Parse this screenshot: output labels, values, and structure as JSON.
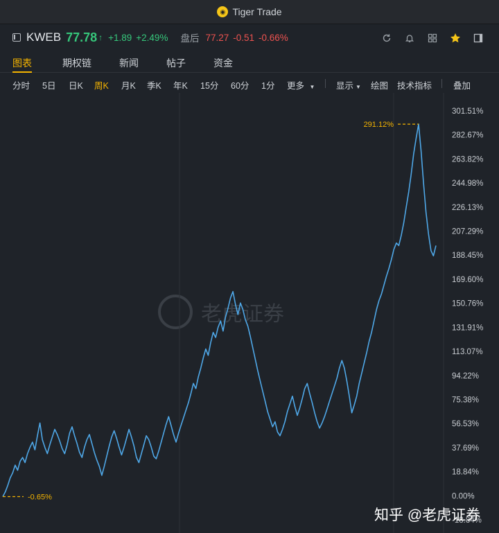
{
  "app": {
    "title": "Tiger Trade"
  },
  "quote": {
    "symbol": "KWEB",
    "price": "77.78",
    "change": "+1.89",
    "change_pct": "+2.49%",
    "after_hours_label": "盘后",
    "after_hours_price": "77.27",
    "after_hours_change": "-0.51",
    "after_hours_change_pct": "-0.66%"
  },
  "toolbar_icons": [
    "refresh-icon",
    "bell-icon",
    "grid-icon",
    "star-icon",
    "panel-icon"
  ],
  "tabs": [
    "图表",
    "期权链",
    "新闻",
    "帖子",
    "资金"
  ],
  "periods": [
    "分时",
    "5日",
    "日K",
    "周K",
    "月K",
    "季K",
    "年K",
    "15分",
    "60分",
    "1分",
    "更多",
    "显示",
    "绘图",
    "技术指标",
    "叠加"
  ],
  "active_period": "周K",
  "watermark": "老虎证券",
  "footer_watermark": "知乎 @老虎证券",
  "colors": {
    "up": "#36c77b",
    "down": "#ef5350",
    "accent": "#f5b400",
    "line": "#4fa8e8"
  },
  "chart_data": {
    "type": "line",
    "y_unit": "%",
    "y_ticks": [
      "301.51%",
      "282.67%",
      "263.82%",
      "244.98%",
      "226.13%",
      "207.29%",
      "188.45%",
      "169.60%",
      "150.76%",
      "131.91%",
      "113.07%",
      "94.22%",
      "75.38%",
      "56.53%",
      "37.69%",
      "18.84%",
      "0.00%",
      "-18.84%"
    ],
    "ylim": [
      -18.84,
      301.51
    ],
    "high_label": "291.12%",
    "low_label": "-0.65%",
    "high_value": 291.12,
    "low_value": -0.65,
    "grid": true,
    "series": [
      {
        "values": [
          -0.65,
          3,
          8,
          14,
          18,
          24,
          20,
          27,
          30,
          26,
          33,
          38,
          42,
          36,
          47,
          57,
          44,
          38,
          33,
          40,
          46,
          52,
          48,
          43,
          37,
          33,
          40,
          49,
          54,
          47,
          41,
          34,
          30,
          38,
          44,
          48,
          41,
          34,
          28,
          23,
          16,
          23,
          31,
          39,
          46,
          51,
          45,
          38,
          32,
          38,
          45,
          52,
          46,
          39,
          30,
          26,
          33,
          40,
          47,
          44,
          38,
          31,
          29,
          35,
          42,
          49,
          56,
          62,
          55,
          48,
          42,
          49,
          55,
          61,
          67,
          73,
          80,
          88,
          84,
          93,
          100,
          108,
          115,
          110,
          120,
          128,
          124,
          132,
          137,
          129,
          140,
          147,
          155,
          160,
          150,
          142,
          151,
          146,
          138,
          133,
          125,
          116,
          107,
          98,
          90,
          82,
          74,
          66,
          60,
          54,
          58,
          50,
          47,
          52,
          58,
          66,
          72,
          78,
          70,
          63,
          69,
          76,
          84,
          88,
          80,
          73,
          65,
          58,
          53,
          57,
          62,
          68,
          74,
          80,
          86,
          92,
          100,
          106,
          100,
          90,
          78,
          65,
          71,
          78,
          88,
          96,
          104,
          112,
          121,
          128,
          137,
          146,
          153,
          158,
          165,
          172,
          178,
          185,
          193,
          198,
          196,
          204,
          214,
          226,
          238,
          252,
          268,
          280,
          291.12,
          270,
          245,
          222,
          205,
          192,
          188,
          196
        ]
      }
    ]
  }
}
